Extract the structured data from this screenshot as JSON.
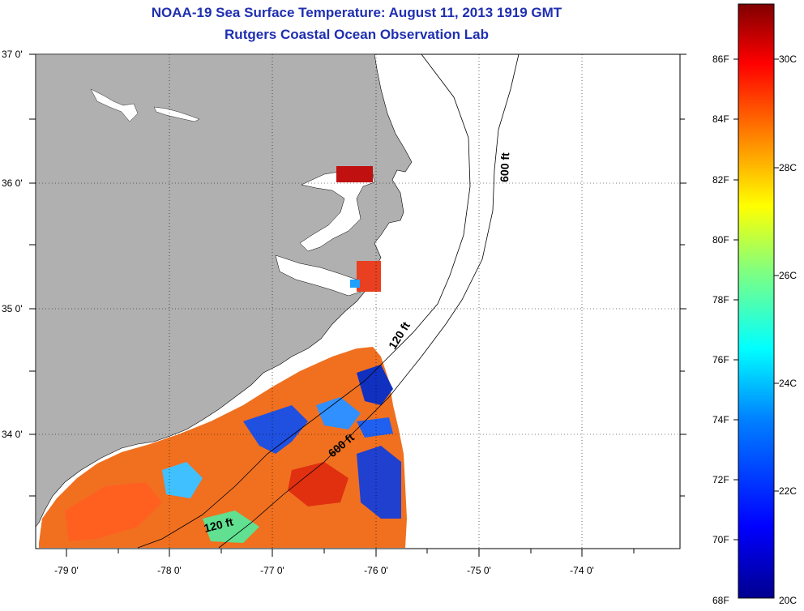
{
  "header": {
    "title": "NOAA-19 Sea Surface Temperature:  August 11, 2013 1919 GMT",
    "subtitle": "Rutgers Coastal Ocean Observation Lab"
  },
  "map": {
    "lat_labels": [
      "37 0'",
      "36 0'",
      "35 0'",
      "34 0'"
    ],
    "lon_labels": [
      "-79 0'",
      "-78 0'",
      "-77 0'",
      "-76 0'",
      "-75 0'",
      "-74 0'"
    ],
    "depth_labels": [
      "600 ft",
      "120 ft",
      "600 ft",
      "120 ft"
    ],
    "land_color": "#b0b0b0",
    "ocean_color": "#ffffff"
  },
  "colorbar": {
    "fahrenheit_labels": [
      "86F",
      "84F",
      "82F",
      "80F",
      "78F",
      "76F",
      "74F",
      "72F",
      "70F",
      "68F"
    ],
    "celsius_labels": [
      "30C",
      "28C",
      "26C",
      "24C",
      "22C",
      "20C"
    ],
    "colors": [
      "#00008f",
      "#0000ff",
      "#0080ff",
      "#00ffff",
      "#80ff80",
      "#ffff00",
      "#ff8000",
      "#ff0000",
      "#800000"
    ]
  }
}
